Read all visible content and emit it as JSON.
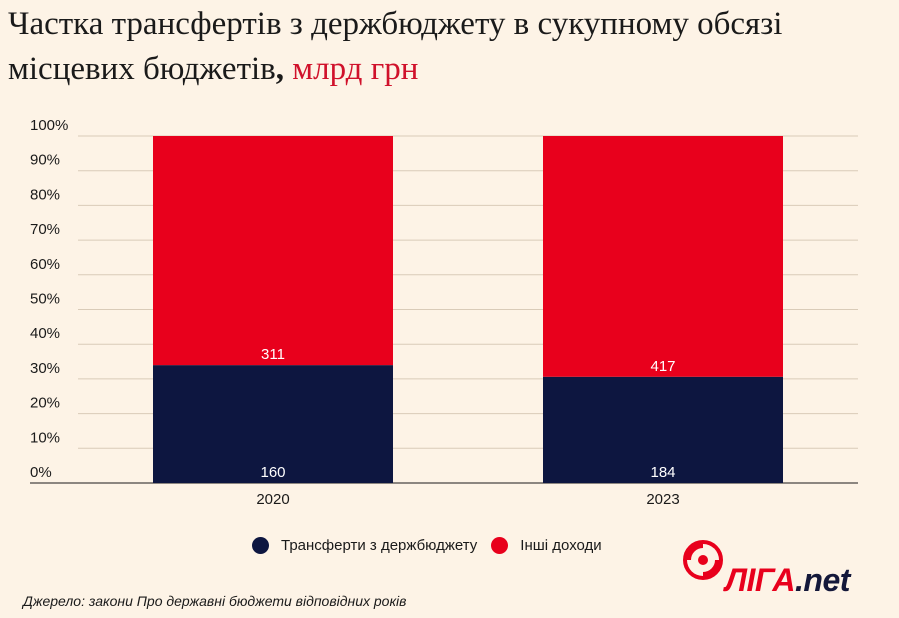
{
  "title": {
    "main": "Частка трансфертів з держбюджету в сукупному обсязі місцевих бюджетів",
    "comma": ",",
    "unit": "млрд грн"
  },
  "chart_data": {
    "type": "bar",
    "stacked": true,
    "normalized": true,
    "categories": [
      "2020",
      "2023"
    ],
    "series": [
      {
        "name": "Трансферти з держбюджету",
        "values": [
          160,
          184
        ],
        "color": "#0d1640"
      },
      {
        "name": "Інші доходи",
        "values": [
          311,
          417
        ],
        "color": "#e8001c"
      }
    ],
    "yticks": [
      "0%",
      "10%",
      "20%",
      "30%",
      "40%",
      "50%",
      "60%",
      "70%",
      "80%",
      "90%",
      "100%"
    ],
    "ylim": [
      0,
      100
    ],
    "grid": true,
    "legend_position": "bottom"
  },
  "source": "Джерело: закони Про державні бюджети відповідних років",
  "logo": {
    "text": "ЛІГА.net"
  }
}
